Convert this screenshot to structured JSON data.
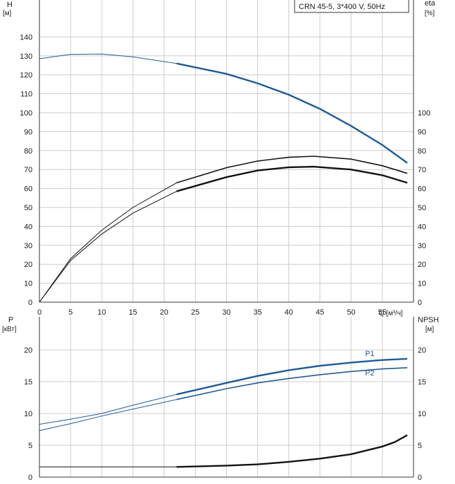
{
  "colors": {
    "blue": "#1f5a96",
    "black": "#111111",
    "grid": "#cccccc",
    "axis": "#333333"
  },
  "chart_data": [
    {
      "type": "line",
      "title": "CRN 45-5, 3*400 V, 50Hz",
      "xlabel": "Q [м³/ч]",
      "ylabel_left": [
        "H",
        "[м]"
      ],
      "ylabel_right": [
        "eta",
        "[%]"
      ],
      "xlim": [
        0,
        60
      ],
      "ylim_left": [
        0,
        150
      ],
      "ylim_right": [
        0,
        150
      ],
      "x_ticks": [
        0,
        5,
        10,
        15,
        20,
        25,
        30,
        35,
        40,
        45,
        50,
        55
      ],
      "y_ticks_left": [
        0,
        10,
        20,
        30,
        40,
        50,
        60,
        70,
        80,
        90,
        100,
        110,
        120,
        130,
        140
      ],
      "y_ticks_right": [
        0,
        10,
        20,
        30,
        40,
        50,
        60,
        70,
        80,
        90,
        100
      ],
      "grid": true,
      "operating_range": [
        22,
        59
      ],
      "series": [
        {
          "id": "H",
          "color": "#1f5a96",
          "x": [
            0,
            5,
            10,
            15,
            22,
            30,
            35,
            40,
            45,
            50,
            55,
            59
          ],
          "y": [
            128.5,
            130.8,
            131,
            129.5,
            126,
            120.5,
            115.5,
            109.5,
            102,
            93,
            83,
            73.5
          ]
        },
        {
          "id": "eta_upper",
          "color": "#111111",
          "x": [
            0,
            5,
            10,
            15,
            22,
            30,
            35,
            40,
            44,
            50,
            55,
            59
          ],
          "y": [
            0,
            23,
            38,
            50,
            63,
            71,
            74.5,
            76.5,
            77,
            75.5,
            72,
            68
          ]
        },
        {
          "id": "eta_lower",
          "color": "#111111",
          "x": [
            0,
            5,
            10,
            15,
            22,
            30,
            35,
            40,
            44,
            50,
            55,
            59
          ],
          "y": [
            0,
            22,
            36,
            47,
            58.5,
            66,
            69.5,
            71.2,
            71.5,
            70,
            67,
            63
          ]
        }
      ]
    },
    {
      "type": "line",
      "ylabel_left": [
        "P",
        "[кВт]"
      ],
      "ylabel_right": [
        "NPSH",
        "[м]"
      ],
      "xlim": [
        0,
        60
      ],
      "ylim_left": [
        0,
        23.5
      ],
      "y_ticks_left": [
        0,
        5,
        10,
        15,
        20
      ],
      "y_ticks_right": [
        0,
        5,
        10,
        15,
        20
      ],
      "grid": true,
      "operating_range": [
        22,
        59
      ],
      "series": [
        {
          "name": "P1",
          "color": "#1f5a96",
          "x": [
            0,
            5,
            10,
            15,
            22,
            30,
            35,
            40,
            45,
            50,
            55,
            59
          ],
          "y": [
            8.3,
            9.1,
            10.0,
            11.3,
            13.0,
            14.8,
            15.9,
            16.8,
            17.5,
            18.0,
            18.4,
            18.6
          ]
        },
        {
          "name": "P2",
          "color": "#1f5a96",
          "x": [
            0,
            5,
            10,
            15,
            22,
            30,
            35,
            40,
            45,
            50,
            55,
            59
          ],
          "y": [
            7.3,
            8.4,
            9.6,
            10.7,
            12.2,
            13.9,
            14.8,
            15.5,
            16.1,
            16.6,
            17.0,
            17.2
          ]
        },
        {
          "id": "NPSH",
          "color": "#111111",
          "x": [
            0,
            10,
            22,
            30,
            35,
            40,
            45,
            50,
            55,
            57,
            59
          ],
          "y": [
            1.6,
            1.6,
            1.6,
            1.8,
            2.0,
            2.4,
            2.9,
            3.6,
            4.8,
            5.5,
            6.6
          ]
        }
      ]
    }
  ]
}
